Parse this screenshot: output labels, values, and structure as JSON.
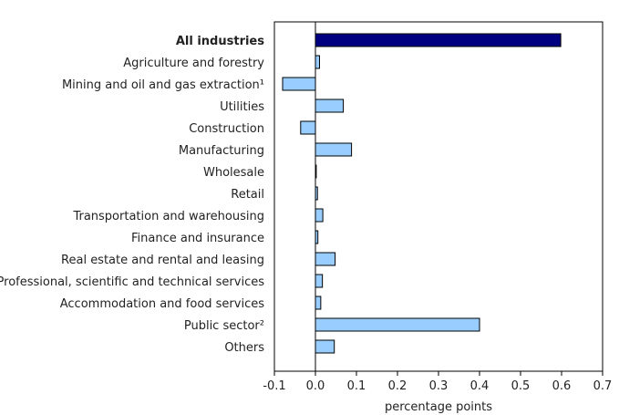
{
  "chart_data": {
    "type": "bar",
    "orientation": "horizontal",
    "title": "",
    "xlabel": "percentage points",
    "ylabel": "",
    "xlim": [
      -0.1,
      0.7
    ],
    "xticks": [
      -0.1,
      0.0,
      0.1,
      0.2,
      0.3,
      0.4,
      0.5,
      0.6,
      0.7
    ],
    "xtick_labels": [
      "-0.1",
      "0.0",
      "0.1",
      "0.2",
      "0.3",
      "0.4",
      "0.5",
      "0.6",
      "0.7"
    ],
    "grid": false,
    "categories": [
      "All industries",
      "Agriculture and forestry",
      "Mining and oil and gas extraction¹",
      "Utilities",
      "Construction",
      "Manufacturing",
      "Wholesale",
      "Retail",
      "Transportation and warehousing",
      "Finance and insurance",
      "Real estate and rental and leasing",
      "Professional, scientific and technical services",
      "Accommodation and food services",
      "Public sector²",
      "Others"
    ],
    "values": [
      0.598,
      0.01,
      -0.08,
      0.068,
      -0.036,
      0.088,
      0.002,
      0.005,
      0.018,
      0.006,
      0.048,
      0.017,
      0.013,
      0.4,
      0.046
    ],
    "highlight_index": 0,
    "colors": {
      "highlight_fill": "#000080",
      "bar_fill": "#99ccff",
      "bar_stroke": "#000000",
      "axis": "#000000"
    }
  }
}
